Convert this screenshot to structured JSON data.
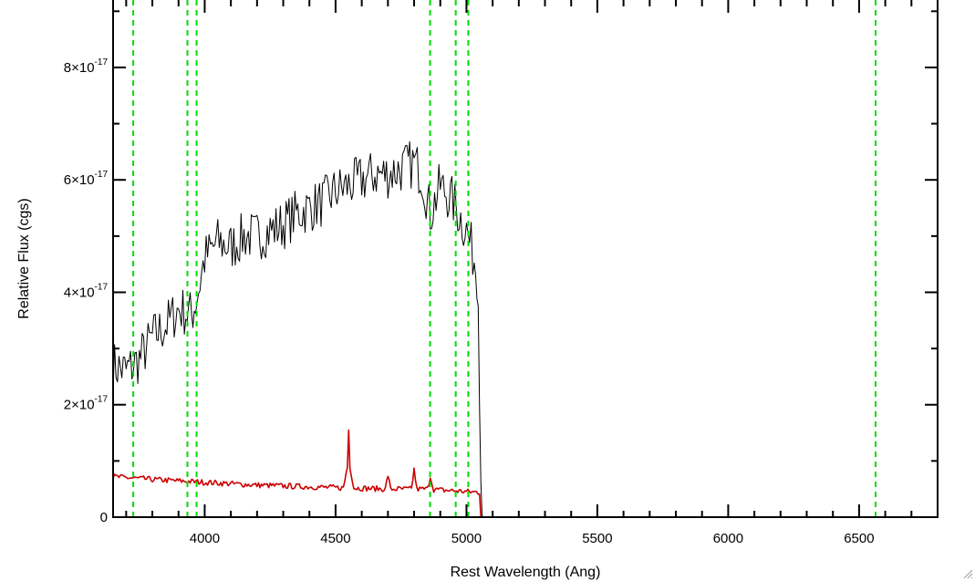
{
  "chart_data": {
    "type": "line",
    "title": "",
    "xlabel": "Rest Wavelength (Ang)",
    "ylabel": "Relative Flux (cgs)",
    "xlim": [
      3650,
      6800
    ],
    "ylim": [
      0,
      9.2e-17
    ],
    "grid": false,
    "x_ticks": [
      {
        "value": 4000,
        "label": "4000"
      },
      {
        "value": 4500,
        "label": "4500"
      },
      {
        "value": 5000,
        "label": "5000"
      },
      {
        "value": 5500,
        "label": "5500"
      },
      {
        "value": 6000,
        "label": "6000"
      },
      {
        "value": 6500,
        "label": "6500"
      }
    ],
    "y_ticks": [
      {
        "value": 0,
        "mantissa": "0",
        "exponent": ""
      },
      {
        "value": 2e-17,
        "mantissa": "2×10",
        "exponent": "-17"
      },
      {
        "value": 4e-17,
        "mantissa": "4×10",
        "exponent": "-17"
      },
      {
        "value": 6e-17,
        "mantissa": "6×10",
        "exponent": "-17"
      },
      {
        "value": 8e-17,
        "mantissa": "8×10",
        "exponent": "-17"
      }
    ],
    "series": [
      {
        "color": "#000000",
        "style": "solid",
        "noise": 4.5e-18,
        "x": [
          3650,
          3700,
          3750,
          3800,
          3850,
          3900,
          3950,
          3970,
          4000,
          4050,
          4100,
          4150,
          4200,
          4250,
          4300,
          4350,
          4400,
          4450,
          4500,
          4550,
          4600,
          4650,
          4700,
          4750,
          4800,
          4830,
          4862,
          4900,
          4950,
          5000,
          5030,
          5045,
          5050,
          5060,
          6800
        ],
        "y": [
          2.7e-17,
          2.6e-17,
          2.8e-17,
          3.2e-17,
          3.4e-17,
          3.7e-17,
          3.6e-17,
          3.9e-17,
          4.6e-17,
          4.9e-17,
          4.8e-17,
          5e-17,
          5e-17,
          5.1e-17,
          5.2e-17,
          5.4e-17,
          5.5e-17,
          5.6e-17,
          5.8e-17,
          5.9e-17,
          6e-17,
          6.1e-17,
          6.1e-17,
          6.2e-17,
          6.3e-17,
          6.1e-17,
          5.4e-17,
          5.9e-17,
          5.6e-17,
          5.1e-17,
          4.6e-17,
          4.2e-17,
          2e-17,
          0,
          0
        ]
      },
      {
        "color": "#cc0000",
        "style": "solid",
        "noise": 5e-19,
        "x": [
          3650,
          3800,
          4000,
          4200,
          4400,
          4530,
          4545,
          4550,
          4555,
          4570,
          4690,
          4700,
          4710,
          4790,
          4800,
          4810,
          4850,
          4862,
          4875,
          4950,
          5050,
          5055,
          6800
        ],
        "y": [
          7.2e-18,
          6.7e-18,
          6.2e-18,
          5.7e-18,
          5.4e-18,
          5.2e-18,
          9e-18,
          1.55e-17,
          9e-18,
          5.2e-18,
          5e-18,
          7.5e-18,
          5e-18,
          5e-18,
          8.5e-18,
          5e-18,
          5e-18,
          7.2e-18,
          4.9e-18,
          4.7e-18,
          4.4e-18,
          0,
          0
        ]
      }
    ],
    "vertical_lines": [
      {
        "x": 3727,
        "color": "#00dd00",
        "style": "dashed"
      },
      {
        "x": 3934,
        "color": "#00dd00",
        "style": "dashed"
      },
      {
        "x": 3969,
        "color": "#00dd00",
        "style": "dashed"
      },
      {
        "x": 4861,
        "color": "#00dd00",
        "style": "dashed"
      },
      {
        "x": 4959,
        "color": "#00dd00",
        "style": "dashed"
      },
      {
        "x": 5007,
        "color": "#00dd00",
        "style": "dashed"
      },
      {
        "x": 6563,
        "color": "#00dd00",
        "style": "dashed"
      }
    ]
  }
}
